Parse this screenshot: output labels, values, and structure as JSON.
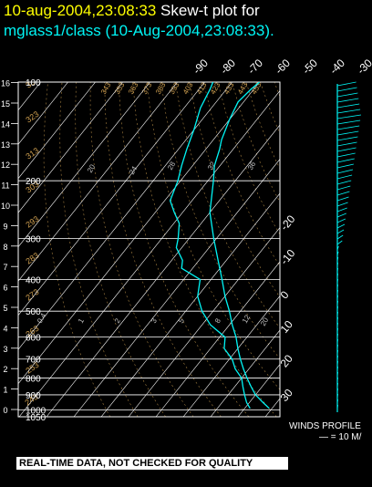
{
  "header": {
    "date_time": "10-aug-2004,23:08:33",
    "plot_label": "Skew-t plot for",
    "subtitle": "mglass1/class (10-Aug-2004,23:08:33)."
  },
  "footer": {
    "quality_note": "REAL-TIME DATA, NOT CHECKED FOR QUALITY"
  },
  "winds": {
    "label": "WINDS PROFILE",
    "scale": "— = 10 M/"
  },
  "colors": {
    "sounding": "#00f5f5",
    "title_date": "#ffff00",
    "dry_adiabats": "#d0a050",
    "grid": "#ffffff",
    "mixing_ratio_labels": "#e0e0e0"
  },
  "chart_data": {
    "type": "line",
    "title": "Skew-t plot for mglass1/class (10-Aug-2004,23:08:33).",
    "pressure_levels_hpa": [
      100,
      200,
      300,
      400,
      500,
      600,
      700,
      800,
      900,
      1000,
      1050
    ],
    "height_km_ticks": [
      0,
      1,
      2,
      3,
      4,
      5,
      6,
      7,
      8,
      9,
      10,
      11,
      12,
      13,
      14,
      15,
      16
    ],
    "temperature_ticks_top_c": [
      -90,
      -80,
      -70,
      -60,
      -50,
      -40,
      -30
    ],
    "temperature_ticks_right_c": [
      -20,
      -10,
      0,
      10,
      20,
      30
    ],
    "dry_adiabat_labels": [
      "243",
      "253",
      "263",
      "273",
      "283",
      "293",
      "303",
      "313",
      "323",
      "333",
      "343",
      "353",
      "363",
      "373",
      "383",
      "393",
      "403",
      "413",
      "423",
      "433",
      "443",
      "453"
    ],
    "mixing_ratio_labels": [
      "20",
      "24",
      "28",
      "32",
      "36",
      "0.4",
      "1",
      "2",
      "3",
      "5",
      "8",
      "12",
      "20"
    ],
    "series": [
      {
        "name": "Temperature",
        "points": [
          {
            "p": 990,
            "t": 29
          },
          {
            "p": 950,
            "t": 25
          },
          {
            "p": 900,
            "t": 20
          },
          {
            "p": 850,
            "t": 16
          },
          {
            "p": 800,
            "t": 12
          },
          {
            "p": 750,
            "t": 8
          },
          {
            "p": 700,
            "t": 4
          },
          {
            "p": 650,
            "t": 0
          },
          {
            "p": 600,
            "t": -4
          },
          {
            "p": 550,
            "t": -9
          },
          {
            "p": 500,
            "t": -14
          },
          {
            "p": 450,
            "t": -20
          },
          {
            "p": 400,
            "t": -26
          },
          {
            "p": 350,
            "t": -33
          },
          {
            "p": 300,
            "t": -41
          },
          {
            "p": 250,
            "t": -50
          },
          {
            "p": 200,
            "t": -58
          },
          {
            "p": 180,
            "t": -62
          },
          {
            "p": 160,
            "t": -65
          },
          {
            "p": 150,
            "t": -67
          },
          {
            "p": 130,
            "t": -70
          },
          {
            "p": 115,
            "t": -72
          },
          {
            "p": 105,
            "t": -71
          },
          {
            "p": 100,
            "t": -70
          }
        ]
      },
      {
        "name": "Dew point",
        "points": [
          {
            "p": 990,
            "t": 22
          },
          {
            "p": 950,
            "t": 19
          },
          {
            "p": 900,
            "t": 16
          },
          {
            "p": 850,
            "t": 13
          },
          {
            "p": 800,
            "t": 10
          },
          {
            "p": 750,
            "t": 5
          },
          {
            "p": 700,
            "t": 1
          },
          {
            "p": 650,
            "t": -5
          },
          {
            "p": 600,
            "t": -8
          },
          {
            "p": 550,
            "t": -17
          },
          {
            "p": 500,
            "t": -24
          },
          {
            "p": 450,
            "t": -30
          },
          {
            "p": 400,
            "t": -34
          },
          {
            "p": 370,
            "t": -44
          },
          {
            "p": 350,
            "t": -46
          },
          {
            "p": 320,
            "t": -52
          },
          {
            "p": 300,
            "t": -54
          },
          {
            "p": 270,
            "t": -58
          },
          {
            "p": 250,
            "t": -63
          },
          {
            "p": 230,
            "t": -68
          },
          {
            "p": 200,
            "t": -71
          },
          {
            "p": 180,
            "t": -74
          },
          {
            "p": 160,
            "t": -77
          },
          {
            "p": 140,
            "t": -80
          },
          {
            "p": 120,
            "t": -84
          },
          {
            "p": 105,
            "t": -86
          },
          {
            "p": 100,
            "t": -87
          }
        ]
      }
    ],
    "xlabel": "",
    "ylabel": "",
    "ylim_hpa": [
      1050,
      100
    ]
  }
}
